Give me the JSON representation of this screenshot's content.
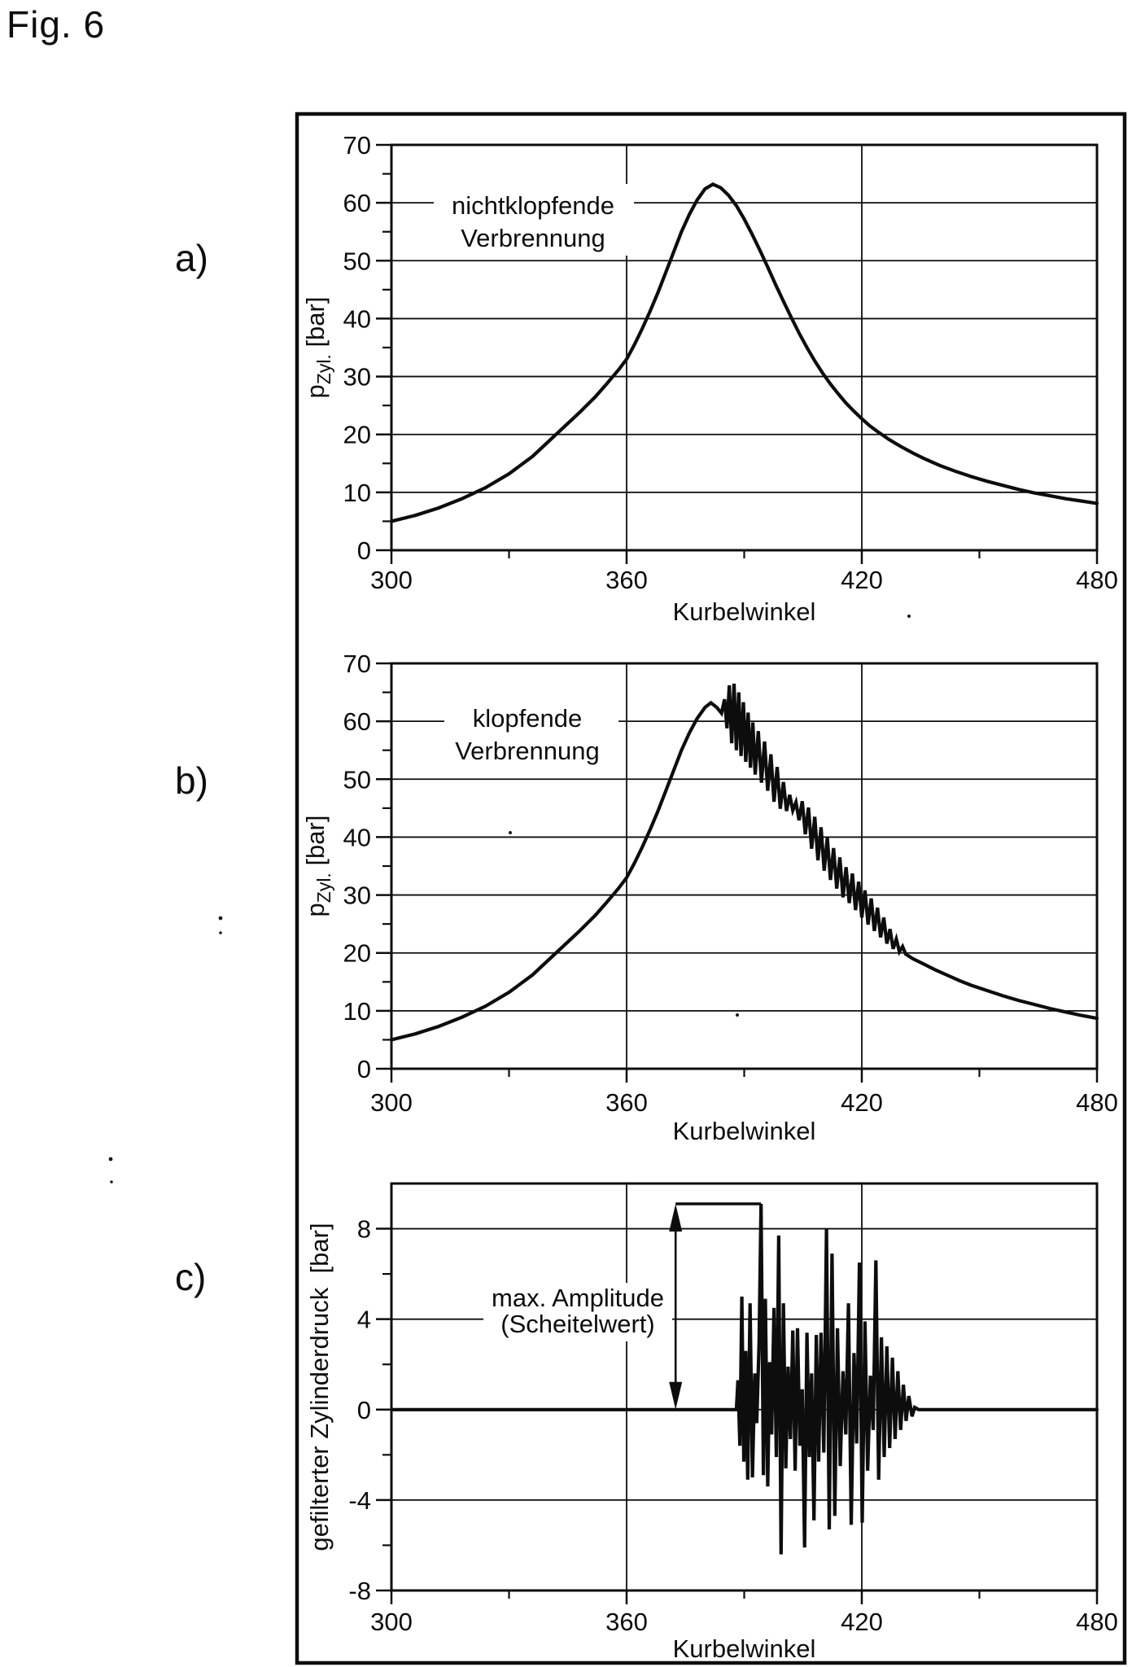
{
  "figure": {
    "title": "Fig. 6"
  },
  "colors": {
    "ink": "#0d0d0d",
    "paper": "#ffffff"
  },
  "chart_data": [
    {
      "panel_label": "a)",
      "type": "line",
      "annotation": {
        "lines": [
          "nichtklopfende",
          "Verbrennung"
        ]
      },
      "xlabel": "Kurbelwinkel",
      "ylabel": {
        "main": "p",
        "sub": "Zyl.",
        "unit": "[bar]"
      },
      "xlim": [
        300,
        480
      ],
      "ylim": [
        0,
        70
      ],
      "xticks": [
        300,
        360,
        420,
        480
      ],
      "xticks_minor": [
        330,
        390,
        450
      ],
      "xgrid": [
        360,
        420
      ],
      "yticks": [
        70,
        60,
        50,
        40,
        30,
        20,
        10,
        0
      ],
      "yticks_minor": [
        65,
        55,
        45,
        35,
        25,
        15,
        5
      ],
      "ygrid": [
        60,
        50,
        40,
        30,
        20,
        10
      ],
      "series": [
        [
          300,
          5
        ],
        [
          306,
          6
        ],
        [
          312,
          7.3
        ],
        [
          318,
          8.9
        ],
        [
          324,
          10.8
        ],
        [
          330,
          13.2
        ],
        [
          336,
          16.2
        ],
        [
          342,
          20
        ],
        [
          348,
          23.8
        ],
        [
          352,
          26.5
        ],
        [
          355,
          28.8
        ],
        [
          358,
          31.2
        ],
        [
          360,
          33
        ],
        [
          362,
          35.5
        ],
        [
          364,
          38.3
        ],
        [
          366,
          41.3
        ],
        [
          368,
          44.5
        ],
        [
          370,
          48
        ],
        [
          372,
          51.5
        ],
        [
          374,
          55
        ],
        [
          376,
          58
        ],
        [
          378,
          60.5
        ],
        [
          380,
          62.4
        ],
        [
          382,
          63.2
        ],
        [
          384,
          62.6
        ],
        [
          386,
          61.3
        ],
        [
          388,
          59.5
        ],
        [
          390,
          57.2
        ],
        [
          392,
          54.6
        ],
        [
          394,
          51.8
        ],
        [
          396,
          48.9
        ],
        [
          398,
          45.9
        ],
        [
          400,
          43
        ],
        [
          402,
          40.2
        ],
        [
          404,
          37.5
        ],
        [
          406,
          35
        ],
        [
          408,
          32.7
        ],
        [
          410,
          30.6
        ],
        [
          412,
          28.7
        ],
        [
          414,
          27
        ],
        [
          416,
          25.4
        ],
        [
          418,
          24
        ],
        [
          420,
          22.7
        ],
        [
          422,
          21.5
        ],
        [
          424,
          20.5
        ],
        [
          427,
          19.1
        ],
        [
          430,
          17.9
        ],
        [
          433,
          16.8
        ],
        [
          436,
          15.8
        ],
        [
          440,
          14.6
        ],
        [
          444,
          13.6
        ],
        [
          448,
          12.7
        ],
        [
          452,
          11.9
        ],
        [
          456,
          11.2
        ],
        [
          460,
          10.5
        ],
        [
          464,
          9.9
        ],
        [
          468,
          9.4
        ],
        [
          472,
          8.9
        ],
        [
          476,
          8.5
        ],
        [
          480,
          8.1
        ]
      ]
    },
    {
      "panel_label": "b)",
      "type": "line",
      "annotation": {
        "lines": [
          "klopfende",
          "Verbrennung"
        ]
      },
      "xlabel": "Kurbelwinkel",
      "ylabel": {
        "main": "p",
        "sub": "Zyl.",
        "unit": "[bar]"
      },
      "xlim": [
        300,
        480
      ],
      "ylim": [
        0,
        70
      ],
      "xticks": [
        300,
        360,
        420,
        480
      ],
      "xticks_minor": [
        330,
        390,
        450
      ],
      "xgrid": [
        360,
        420
      ],
      "yticks": [
        70,
        60,
        50,
        40,
        30,
        20,
        10,
        0
      ],
      "yticks_minor": [
        65,
        55,
        45,
        35,
        25,
        15,
        5
      ],
      "ygrid": [
        60,
        50,
        40,
        30,
        20,
        10
      ],
      "series": [
        [
          300,
          5
        ],
        [
          306,
          6
        ],
        [
          312,
          7.3
        ],
        [
          318,
          8.9
        ],
        [
          324,
          10.8
        ],
        [
          330,
          13.2
        ],
        [
          336,
          16.2
        ],
        [
          342,
          20
        ],
        [
          348,
          23.8
        ],
        [
          352,
          26.5
        ],
        [
          355,
          28.8
        ],
        [
          358,
          31.2
        ],
        [
          360,
          33
        ],
        [
          362,
          35.5
        ],
        [
          364,
          38.3
        ],
        [
          366,
          41.3
        ],
        [
          368,
          44.5
        ],
        [
          370,
          48
        ],
        [
          372,
          51.5
        ],
        [
          374,
          55
        ],
        [
          376,
          58
        ],
        [
          378,
          60.5
        ],
        [
          380,
          62.4
        ],
        [
          381.5,
          63.2
        ],
        [
          383,
          62.4
        ],
        [
          384.2,
          61.4
        ],
        [
          385,
          63.8
        ],
        [
          385.6,
          58.8
        ],
        [
          386.2,
          66.2
        ],
        [
          386.8,
          56.2
        ],
        [
          387.4,
          66.5
        ],
        [
          388,
          55
        ],
        [
          388.6,
          65
        ],
        [
          389.2,
          54
        ],
        [
          389.8,
          63.3
        ],
        [
          390.4,
          53
        ],
        [
          391,
          61.5
        ],
        [
          391.6,
          52
        ],
        [
          392.2,
          59.8
        ],
        [
          392.8,
          50.8
        ],
        [
          393.6,
          58.3
        ],
        [
          394.4,
          49.4
        ],
        [
          395.2,
          56.5
        ],
        [
          396,
          48
        ],
        [
          396.8,
          54.3
        ],
        [
          397.6,
          46.1
        ],
        [
          398.4,
          52.1
        ],
        [
          399.2,
          44.9
        ],
        [
          400,
          49.5
        ],
        [
          400.8,
          44.5
        ],
        [
          401.6,
          47.3
        ],
        [
          402.4,
          44.6
        ],
        [
          403.2,
          46
        ],
        [
          404,
          42.9
        ],
        [
          404.8,
          46.2
        ],
        [
          405.6,
          40.5
        ],
        [
          406.4,
          45.1
        ],
        [
          407.2,
          38
        ],
        [
          408,
          43.5
        ],
        [
          408.8,
          36
        ],
        [
          409.6,
          41.7
        ],
        [
          410.4,
          34.2
        ],
        [
          411.2,
          39.9
        ],
        [
          412,
          32.6
        ],
        [
          412.8,
          38.1
        ],
        [
          413.6,
          31.1
        ],
        [
          414.4,
          36.5
        ],
        [
          415.2,
          29.6
        ],
        [
          416,
          34.8
        ],
        [
          416.8,
          28.6
        ],
        [
          417.6,
          33.7
        ],
        [
          418.4,
          27.4
        ],
        [
          419.2,
          32.3
        ],
        [
          420,
          26.1
        ],
        [
          420.8,
          30.8
        ],
        [
          421.6,
          24.9
        ],
        [
          422.4,
          29.4
        ],
        [
          423.2,
          23.8
        ],
        [
          424,
          27.8
        ],
        [
          424.8,
          22.7
        ],
        [
          425.6,
          26.1
        ],
        [
          426.4,
          21.6
        ],
        [
          427.2,
          24.1
        ],
        [
          428,
          20.7
        ],
        [
          428.8,
          22.4
        ],
        [
          429.6,
          20.2
        ],
        [
          430.4,
          21.1
        ],
        [
          431.2,
          19.8
        ],
        [
          433,
          19
        ],
        [
          436,
          18
        ],
        [
          439,
          17
        ],
        [
          442,
          16.1
        ],
        [
          445,
          15.2
        ],
        [
          448,
          14.4
        ],
        [
          452,
          13.5
        ],
        [
          456,
          12.6
        ],
        [
          460,
          11.8
        ],
        [
          464,
          11.1
        ],
        [
          468,
          10.4
        ],
        [
          472,
          9.8
        ],
        [
          476,
          9.2
        ],
        [
          480,
          8.7
        ]
      ]
    },
    {
      "panel_label": "c)",
      "type": "line",
      "annotation": {
        "lines": [
          "max. Amplitude",
          "(Scheitelwert)"
        ],
        "arrow_deg": 372.5,
        "peak_deg": 394.3,
        "peak_bar": 9.1
      },
      "xlabel": "Kurbelwinkel",
      "ylabel": {
        "main": "gefilterter Zylinderdruck",
        "sub": "",
        "unit": "[bar]"
      },
      "xlim": [
        300,
        480
      ],
      "ylim": [
        -8,
        10
      ],
      "xticks": [
        300,
        360,
        420,
        480
      ],
      "xticks_minor": [
        330,
        390,
        450
      ],
      "xgrid": [
        360,
        420
      ],
      "yticks": [
        8,
        4,
        0,
        -4,
        -8
      ],
      "yticks_minor": [
        6,
        2,
        -2,
        -6
      ],
      "ygrid": [
        8,
        4,
        0,
        -4
      ],
      "series": [
        [
          300,
          0
        ],
        [
          388,
          0
        ],
        [
          388.4,
          1.3
        ],
        [
          388.9,
          -1.6
        ],
        [
          389.4,
          5
        ],
        [
          389.9,
          -2.3
        ],
        [
          390.4,
          2.6
        ],
        [
          390.9,
          -3.1
        ],
        [
          391.5,
          4.7
        ],
        [
          392.1,
          -3
        ],
        [
          392.7,
          1.6
        ],
        [
          393.2,
          -0.6
        ],
        [
          393.8,
          3
        ],
        [
          394.3,
          9.1
        ],
        [
          394.9,
          -2.9
        ],
        [
          395.4,
          4.9
        ],
        [
          396,
          -3.4
        ],
        [
          396.5,
          2.1
        ],
        [
          397,
          -1.1
        ],
        [
          397.6,
          4.5
        ],
        [
          398.2,
          -2.1
        ],
        [
          398.8,
          7.7
        ],
        [
          399.4,
          -6.4
        ],
        [
          400,
          4.7
        ],
        [
          400.6,
          -2.6
        ],
        [
          401.2,
          1.9
        ],
        [
          401.8,
          -1.3
        ],
        [
          402.4,
          3.5
        ],
        [
          403,
          -2.7
        ],
        [
          403.6,
          3.6
        ],
        [
          404.2,
          -1.6
        ],
        [
          404.8,
          0.9
        ],
        [
          405.4,
          -6.1
        ],
        [
          406,
          3.4
        ],
        [
          406.6,
          -2.1
        ],
        [
          407.2,
          1.6
        ],
        [
          407.8,
          -4.9
        ],
        [
          408.4,
          3.3
        ],
        [
          409,
          -2.3
        ],
        [
          409.6,
          3.4
        ],
        [
          410.3,
          -1.9
        ],
        [
          411,
          8
        ],
        [
          411.7,
          -5.3
        ],
        [
          412.4,
          6.9
        ],
        [
          413.1,
          -4.7
        ],
        [
          413.8,
          3.6
        ],
        [
          414.5,
          -2.5
        ],
        [
          415.2,
          1.7
        ],
        [
          415.9,
          -1.1
        ],
        [
          416.6,
          4.7
        ],
        [
          417.3,
          -5.1
        ],
        [
          418,
          2.5
        ],
        [
          418.7,
          -1.5
        ],
        [
          419.4,
          6.5
        ],
        [
          420.1,
          -5
        ],
        [
          420.8,
          3.9
        ],
        [
          421.5,
          -2.7
        ],
        [
          422.2,
          1.5
        ],
        [
          422.9,
          -0.9
        ],
        [
          423.6,
          6.6
        ],
        [
          424.3,
          -3.1
        ],
        [
          425,
          3.2
        ],
        [
          425.7,
          -2.1
        ],
        [
          426.4,
          2.8
        ],
        [
          427.1,
          -1.7
        ],
        [
          427.8,
          2.3
        ],
        [
          428.5,
          -1.3
        ],
        [
          429.2,
          1.7
        ],
        [
          429.9,
          -0.9
        ],
        [
          430.6,
          1.1
        ],
        [
          431.3,
          -0.5
        ],
        [
          432,
          0.6
        ],
        [
          432.8,
          -0.3
        ],
        [
          433.5,
          0.1
        ],
        [
          434.5,
          0
        ],
        [
          480,
          0
        ]
      ]
    }
  ]
}
